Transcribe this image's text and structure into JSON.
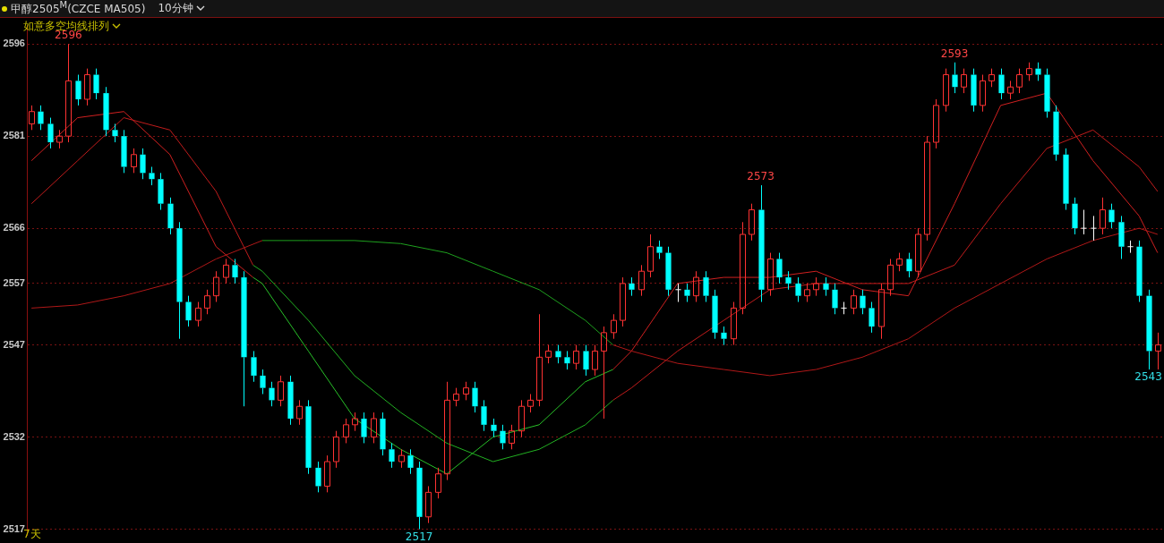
{
  "chart_data": {
    "type": "candlestick",
    "title": "甲醇2505$^{M}$(CZCE MA505)",
    "subtitle": "10分钟",
    "legend_title": "如意多空均线排列",
    "annotations": [
      {
        "text": "2596",
        "y": 2596
      },
      {
        "text": "2517",
        "y": 2517
      },
      {
        "text": "2573",
        "y": 2573
      },
      {
        "text": "2593",
        "y": 2593
      },
      {
        "text": "2543",
        "y": 2543
      },
      "7天"
    ],
    "categories": [
      null,
      null,
      null,
      null,
      null,
      null,
      null,
      null,
      null,
      null,
      null,
      null,
      null,
      null,
      null,
      null,
      null,
      null,
      null,
      null,
      null,
      null,
      null,
      null,
      null,
      null,
      null,
      null,
      null,
      null,
      null,
      null,
      null,
      null,
      null,
      null,
      null,
      null,
      null,
      null,
      null,
      null,
      null,
      null,
      null,
      null,
      null,
      null,
      null,
      null,
      null,
      null,
      null,
      null,
      null,
      null,
      null,
      null,
      null,
      null,
      null,
      null,
      null,
      null,
      null,
      null,
      null,
      null,
      null,
      null,
      null,
      null,
      null,
      null,
      null,
      null,
      null,
      null,
      null,
      null,
      null,
      null,
      null,
      null,
      null,
      null,
      null,
      null,
      null,
      null,
      null,
      null,
      null,
      null,
      null,
      null,
      null,
      null,
      null,
      null,
      null,
      null,
      null,
      null,
      null,
      null,
      null,
      null,
      null,
      null,
      null,
      null,
      null,
      null,
      null,
      null,
      null,
      null,
      null,
      null,
      null,
      null,
      null
    ],
    "ylim": [
      2516,
      2599
    ],
    "yticks": [
      2596,
      2581,
      2566,
      2557,
      2547,
      2532,
      2517
    ],
    "grid": "y",
    "tick_labels": "y",
    "series": [
      {
        "type": "line",
        "color": "#b01818",
        "values": [
          2553,
          null,
          null,
          null,
          null,
          2553.5,
          null,
          null,
          null,
          null,
          2555,
          null,
          null,
          null,
          null,
          2557,
          null,
          null,
          null,
          null,
          2561,
          null,
          null,
          null,
          null,
          2564,
          null,
          null,
          null,
          null,
          null,
          null,
          null,
          null,
          null,
          null,
          null,
          null,
          null,
          null,
          null,
          null,
          null,
          null,
          null,
          null,
          null,
          null,
          null,
          null,
          null,
          null,
          null,
          null,
          null,
          null,
          null,
          null,
          null,
          null,
          null,
          null,
          null,
          2547,
          null,
          2546,
          null,
          null,
          null,
          null,
          2544,
          null,
          null,
          null,
          null,
          2543,
          null,
          null,
          null,
          null,
          2542,
          null,
          null,
          null,
          null,
          2543,
          null,
          null,
          null,
          null,
          2545,
          null,
          null,
          null,
          null,
          2548,
          null,
          null,
          null,
          null,
          2553,
          null,
          null,
          null,
          null,
          2557,
          null,
          null,
          null,
          null,
          2561,
          null,
          null,
          null,
          null,
          2564,
          null,
          null,
          null,
          null,
          2566,
          null,
          2565
        ]
      },
      {
        "type": "line",
        "color": "#1ea01e",
        "values": [
          null,
          null,
          null,
          null,
          null,
          null,
          null,
          null,
          null,
          null,
          null,
          null,
          null,
          null,
          null,
          null,
          null,
          null,
          null,
          null,
          null,
          null,
          null,
          null,
          null,
          2564,
          null,
          null,
          null,
          null,
          2564,
          null,
          null,
          null,
          null,
          2564,
          null,
          null,
          null,
          null,
          2563.5,
          null,
          null,
          null,
          null,
          2562,
          null,
          null,
          null,
          null,
          2559,
          null,
          null,
          null,
          null,
          2556,
          null,
          null,
          null,
          null,
          2551,
          null,
          null,
          2547,
          null,
          null,
          null,
          null,
          null,
          null,
          null,
          null,
          null,
          null,
          null,
          null,
          null,
          null,
          null,
          null,
          null,
          null,
          null,
          null,
          null,
          null,
          null,
          null,
          null,
          null,
          null,
          null,
          null,
          null,
          null,
          null,
          null,
          null,
          null,
          null,
          null,
          null,
          null,
          null,
          null,
          null,
          null,
          null,
          null,
          null,
          null,
          null,
          null,
          null,
          null,
          null,
          null,
          null,
          null,
          null,
          null,
          null,
          null
        ]
      },
      {
        "type": "line",
        "color": "#c01c1c",
        "values": [
          2570,
          null,
          null,
          null,
          null,
          2577,
          null,
          null,
          null,
          null,
          2584,
          null,
          null,
          null,
          null,
          2582,
          null,
          null,
          null,
          null,
          2572,
          null,
          null,
          null,
          2560,
          null,
          null,
          null,
          null,
          null,
          null,
          null,
          null,
          null,
          null,
          null,
          null,
          null,
          null,
          null,
          null,
          null,
          null,
          null,
          null,
          null,
          null,
          null,
          null,
          null,
          null,
          null,
          null,
          null,
          null,
          null,
          null,
          null,
          null,
          null,
          null,
          null,
          null,
          2538,
          null,
          2540,
          null,
          null,
          null,
          null,
          2546,
          null,
          null,
          null,
          null,
          2551,
          null,
          null,
          null,
          null,
          2556,
          null,
          null,
          null,
          null,
          2557,
          null,
          null,
          null,
          null,
          2557,
          null,
          null,
          null,
          null,
          2557,
          null,
          null,
          null,
          null,
          2560,
          null,
          null,
          null,
          null,
          2570,
          null,
          null,
          null,
          null,
          2579,
          null,
          null,
          null,
          null,
          2582,
          null,
          null,
          null,
          null,
          2576,
          null,
          2572
        ]
      },
      {
        "type": "line",
        "color": "#22b022",
        "values": [
          null,
          null,
          null,
          null,
          null,
          null,
          null,
          null,
          null,
          null,
          null,
          null,
          null,
          null,
          null,
          null,
          null,
          null,
          null,
          null,
          null,
          null,
          null,
          null,
          2560,
          2559,
          null,
          null,
          null,
          null,
          2551,
          null,
          null,
          null,
          null,
          2542,
          null,
          null,
          null,
          null,
          2536,
          null,
          null,
          null,
          null,
          2531,
          null,
          null,
          null,
          null,
          2528,
          null,
          null,
          null,
          null,
          2530,
          null,
          null,
          null,
          null,
          2534,
          null,
          null,
          2538,
          null,
          null,
          null,
          null,
          null,
          null,
          null,
          null,
          null,
          null,
          null,
          null,
          null,
          null,
          null,
          null,
          null,
          null,
          null,
          null,
          null,
          null,
          null,
          null,
          null,
          null,
          null,
          null,
          null,
          null,
          null,
          null,
          null,
          null,
          null,
          null,
          null,
          null,
          null,
          null,
          null,
          null,
          null,
          null,
          null,
          null,
          null,
          null,
          null,
          null,
          null,
          null,
          null,
          null,
          null,
          null,
          null,
          null,
          null
        ]
      },
      {
        "type": "line",
        "color": "#d02020",
        "values": [
          2577,
          null,
          null,
          null,
          null,
          2584,
          null,
          null,
          null,
          null,
          2585,
          null,
          null,
          null,
          null,
          2578,
          null,
          null,
          null,
          null,
          2563,
          null,
          null,
          null,
          2558,
          null,
          null,
          null,
          null,
          null,
          null,
          null,
          null,
          null,
          null,
          null,
          null,
          null,
          null,
          null,
          null,
          null,
          null,
          null,
          null,
          null,
          null,
          null,
          null,
          null,
          null,
          null,
          null,
          null,
          null,
          null,
          null,
          null,
          null,
          null,
          null,
          null,
          null,
          2543,
          null,
          2546,
          null,
          null,
          null,
          null,
          2557,
          null,
          null,
          null,
          null,
          2558,
          null,
          null,
          null,
          null,
          2558,
          null,
          null,
          null,
          null,
          2559,
          null,
          null,
          null,
          null,
          2556,
          null,
          null,
          null,
          null,
          2555,
          null,
          null,
          null,
          null,
          2570,
          null,
          null,
          null,
          null,
          2586,
          null,
          null,
          null,
          null,
          2588,
          null,
          null,
          null,
          null,
          2577,
          null,
          null,
          null,
          null,
          2568,
          null,
          2562
        ]
      },
      {
        "type": "line",
        "color": "#28c028",
        "values": [
          null,
          null,
          null,
          null,
          null,
          null,
          null,
          null,
          null,
          null,
          null,
          null,
          null,
          null,
          null,
          null,
          null,
          null,
          null,
          null,
          null,
          null,
          null,
          null,
          2558,
          2557,
          null,
          null,
          null,
          null,
          2546,
          null,
          null,
          null,
          null,
          2535,
          null,
          null,
          null,
          null,
          2530,
          null,
          null,
          null,
          null,
          2526,
          null,
          null,
          null,
          null,
          2532,
          null,
          null,
          null,
          null,
          2534,
          null,
          null,
          null,
          null,
          2541,
          null,
          null,
          2543,
          null,
          null,
          null,
          null,
          null,
          null,
          null,
          null,
          null,
          null,
          null,
          null,
          null,
          null,
          null,
          null,
          null,
          null,
          null,
          null,
          null,
          null,
          null,
          null,
          null,
          null,
          null,
          null,
          null,
          null,
          null,
          null,
          null,
          null,
          null,
          null,
          null,
          null,
          null,
          null,
          null,
          null,
          null,
          null,
          null,
          null,
          null,
          null,
          null,
          null,
          null,
          null,
          null,
          null,
          null,
          null,
          null,
          null,
          null
        ]
      },
      {
        "type": "candlestick",
        "colors": [
          "#ff3232",
          "#00ffff",
          "#00ffff",
          "#ff3232",
          "#ff3232",
          "#00ffff",
          "#ff3232",
          "#00ffff",
          "#00ffff",
          "#00ffff",
          "#00ffff",
          "#ff3232",
          "#00ffff",
          "#00ffff",
          "#00ffff",
          "#00ffff",
          "#00ffff",
          "#00ffff",
          "#ff3232",
          "#ff3232",
          "#ff3232",
          "#ff3232",
          "#00ffff",
          "#00ffff",
          "#00ffff",
          "#00ffff",
          "#00ffff",
          "#ff3232",
          "#00ffff",
          "#ff3232",
          "#00ffff",
          "#00ffff",
          "#ff3232",
          "#ff3232",
          "#ff3232",
          "#ff3232",
          "#00ffff",
          "#ff3232",
          "#00ffff",
          "#00ffff",
          "#ff3232",
          "#00ffff",
          "#00ffff",
          "#ff3232",
          "#ff3232",
          "#ff3232",
          "#ff3232",
          "#ff3232",
          "#00ffff",
          "#00ffff",
          "#00ffff",
          "#00ffff",
          "#ff3232",
          "#ff3232",
          "#ff3232",
          "#ff3232",
          "#ff3232",
          "#00ffff",
          "#00ffff",
          "#ff3232",
          "#00ffff",
          "#ff3232",
          "#ff3232",
          "#ff3232",
          "#ff3232",
          "#00ffff",
          "#ff3232",
          "#ff3232",
          "#00ffff",
          "#00ffff",
          "#ffffff",
          "#00ffff",
          "#ff3232",
          "#00ffff",
          "#00ffff",
          "#00ffff",
          "#ff3232",
          "#ff3232",
          "#ff3232",
          "#00ffff",
          "#ff3232",
          "#00ffff",
          "#00ffff",
          "#00ffff",
          "#ff3232",
          "#ff3232",
          "#00ffff",
          "#00ffff",
          "#ffffff",
          "#ff3232",
          "#00ffff",
          "#00ffff",
          "#ff3232",
          "#ff3232",
          "#ff3232",
          "#00ffff",
          "#ff3232",
          "#ff3232",
          "#ff3232",
          "#ff3232",
          "#00ffff",
          "#ff3232",
          "#00ffff",
          "#ff3232",
          "#ff3232",
          "#00ffff",
          "#ff3232",
          "#ff3232",
          "#ff3232",
          "#00ffff",
          "#00ffff",
          "#00ffff",
          "#00ffff",
          "#00ffff",
          "#ffffff",
          "#ffffff",
          "#ff3232",
          "#00ffff",
          "#00ffff",
          "#ffffff",
          "#00ffff",
          "#00ffff",
          "#ff3232"
        ],
        "ohlc": [
          [
            2583,
            2586,
            2582,
            2585
          ],
          [
            2585,
            2586,
            2582,
            2583
          ],
          [
            2583,
            2584,
            2579,
            2580
          ],
          [
            2580,
            2582,
            2579,
            2581
          ],
          [
            2581,
            2596,
            2580,
            2590
          ],
          [
            2590,
            2591,
            2586,
            2587
          ],
          [
            2587,
            2592,
            2586,
            2591
          ],
          [
            2591,
            2592,
            2587,
            2588
          ],
          [
            2588,
            2589,
            2581,
            2582
          ],
          [
            2582,
            2583,
            2580,
            2581
          ],
          [
            2581,
            2582,
            2575,
            2576
          ],
          [
            2576,
            2579,
            2575,
            2578
          ],
          [
            2578,
            2579,
            2574,
            2575
          ],
          [
            2575,
            2576,
            2573,
            2574
          ],
          [
            2574,
            2575,
            2569,
            2570
          ],
          [
            2570,
            2571,
            2565,
            2566
          ],
          [
            2566,
            2567,
            2548,
            2554
          ],
          [
            2554,
            2555,
            2550,
            2551
          ],
          [
            2551,
            2554,
            2550,
            2553
          ],
          [
            2553,
            2556,
            2552,
            2555
          ],
          [
            2555,
            2559,
            2554,
            2558
          ],
          [
            2558,
            2561,
            2557,
            2560
          ],
          [
            2560,
            2561,
            2557,
            2558
          ],
          [
            2558,
            2559,
            2537,
            2545
          ],
          [
            2545,
            2546,
            2541,
            2542
          ],
          [
            2542,
            2543,
            2539,
            2540
          ],
          [
            2540,
            2541,
            2537,
            2538
          ],
          [
            2538,
            2542,
            2537,
            2541
          ],
          [
            2541,
            2542,
            2534,
            2535
          ],
          [
            2535,
            2538,
            2534,
            2537
          ],
          [
            2537,
            2538,
            2526,
            2527
          ],
          [
            2527,
            2528,
            2523,
            2524
          ],
          [
            2524,
            2529,
            2523,
            2528
          ],
          [
            2528,
            2533,
            2527,
            2532
          ],
          [
            2532,
            2535,
            2531,
            2534
          ],
          [
            2534,
            2536,
            2533,
            2535
          ],
          [
            2535,
            2536,
            2531,
            2532
          ],
          [
            2532,
            2536,
            2531,
            2535
          ],
          [
            2535,
            2536,
            2529,
            2530
          ],
          [
            2530,
            2531,
            2527,
            2528
          ],
          [
            2528,
            2530,
            2527,
            2529
          ],
          [
            2529,
            2530,
            2526,
            2527
          ],
          [
            2527,
            2528,
            2517,
            2519
          ],
          [
            2519,
            2524,
            2518,
            2523
          ],
          [
            2523,
            2527,
            2522,
            2526
          ],
          [
            2526,
            2541,
            2525,
            2538
          ],
          [
            2538,
            2540,
            2537,
            2539
          ],
          [
            2539,
            2541,
            2538,
            2540
          ],
          [
            2540,
            2541,
            2536,
            2537
          ],
          [
            2537,
            2538,
            2533,
            2534
          ],
          [
            2534,
            2535,
            2532,
            2533
          ],
          [
            2533,
            2534,
            2530,
            2531
          ],
          [
            2531,
            2534,
            2530,
            2533
          ],
          [
            2533,
            2538,
            2532,
            2537
          ],
          [
            2537,
            2539,
            2536,
            2538
          ],
          [
            2538,
            2552,
            2537,
            2545
          ],
          [
            2545,
            2547,
            2544,
            2546
          ],
          [
            2546,
            2547,
            2544,
            2545
          ],
          [
            2545,
            2546,
            2543,
            2544
          ],
          [
            2544,
            2547,
            2543,
            2546
          ],
          [
            2546,
            2547,
            2542,
            2543
          ],
          [
            2543,
            2547,
            2542,
            2546
          ],
          [
            2546,
            2550,
            2535,
            2549
          ],
          [
            2549,
            2552,
            2548,
            2551
          ],
          [
            2551,
            2558,
            2550,
            2557
          ],
          [
            2557,
            2558,
            2555,
            2556
          ],
          [
            2556,
            2560,
            2555,
            2559
          ],
          [
            2559,
            2565,
            2558,
            2563
          ],
          [
            2563,
            2564,
            2561,
            2562
          ],
          [
            2562,
            2563,
            2555,
            2556
          ],
          [
            2556,
            2557,
            2554,
            2556
          ],
          [
            2556,
            2557,
            2554,
            2555
          ],
          [
            2555,
            2559,
            2554,
            2558
          ],
          [
            2558,
            2559,
            2554,
            2555
          ],
          [
            2555,
            2556,
            2548,
            2549
          ],
          [
            2549,
            2550,
            2547,
            2548
          ],
          [
            2548,
            2554,
            2547,
            2553
          ],
          [
            2553,
            2567,
            2552,
            2565
          ],
          [
            2565,
            2570,
            2564,
            2569
          ],
          [
            2569,
            2573,
            2554,
            2556
          ],
          [
            2556,
            2562,
            2555,
            2561
          ],
          [
            2561,
            2562,
            2557,
            2558
          ],
          [
            2558,
            2559,
            2556,
            2557
          ],
          [
            2557,
            2558,
            2554,
            2555
          ],
          [
            2555,
            2557,
            2554,
            2556
          ],
          [
            2556,
            2558,
            2555,
            2557
          ],
          [
            2557,
            2558,
            2555,
            2556
          ],
          [
            2556,
            2557,
            2552,
            2553
          ],
          [
            2553,
            2554,
            2552,
            2553
          ],
          [
            2553,
            2556,
            2552,
            2555
          ],
          [
            2555,
            2556,
            2552,
            2553
          ],
          [
            2553,
            2554,
            2549,
            2550
          ],
          [
            2550,
            2557,
            2548,
            2556
          ],
          [
            2556,
            2561,
            2555,
            2560
          ],
          [
            2560,
            2562,
            2559,
            2561
          ],
          [
            2561,
            2562,
            2558,
            2559
          ],
          [
            2559,
            2566,
            2558,
            2565
          ],
          [
            2565,
            2581,
            2564,
            2580
          ],
          [
            2580,
            2587,
            2579,
            2586
          ],
          [
            2586,
            2592,
            2585,
            2591
          ],
          [
            2591,
            2593,
            2588,
            2589
          ],
          [
            2589,
            2592,
            2588,
            2591
          ],
          [
            2591,
            2592,
            2585,
            2586
          ],
          [
            2586,
            2591,
            2585,
            2590
          ],
          [
            2590,
            2592,
            2589,
            2591
          ],
          [
            2591,
            2592,
            2587,
            2588
          ],
          [
            2588,
            2590,
            2587,
            2589
          ],
          [
            2589,
            2592,
            2588,
            2591
          ],
          [
            2591,
            2593,
            2590,
            2592
          ],
          [
            2592,
            2593,
            2590,
            2591
          ],
          [
            2591,
            2592,
            2584,
            2585
          ],
          [
            2585,
            2586,
            2577,
            2578
          ],
          [
            2578,
            2579,
            2569,
            2570
          ],
          [
            2570,
            2571,
            2565,
            2566
          ],
          [
            2566,
            2569,
            2565,
            2566
          ],
          [
            2566,
            2568,
            2564,
            2566
          ],
          [
            2566,
            2571,
            2565,
            2569
          ],
          [
            2569,
            2570,
            2566,
            2567
          ],
          [
            2567,
            2568,
            2561,
            2563
          ],
          [
            2563,
            2564,
            2562,
            2563
          ],
          [
            2563,
            2564,
            2554,
            2555
          ],
          [
            2555,
            2556,
            2543,
            2546
          ],
          [
            2546,
            2549,
            2543,
            2547
          ]
        ]
      }
    ]
  }
}
